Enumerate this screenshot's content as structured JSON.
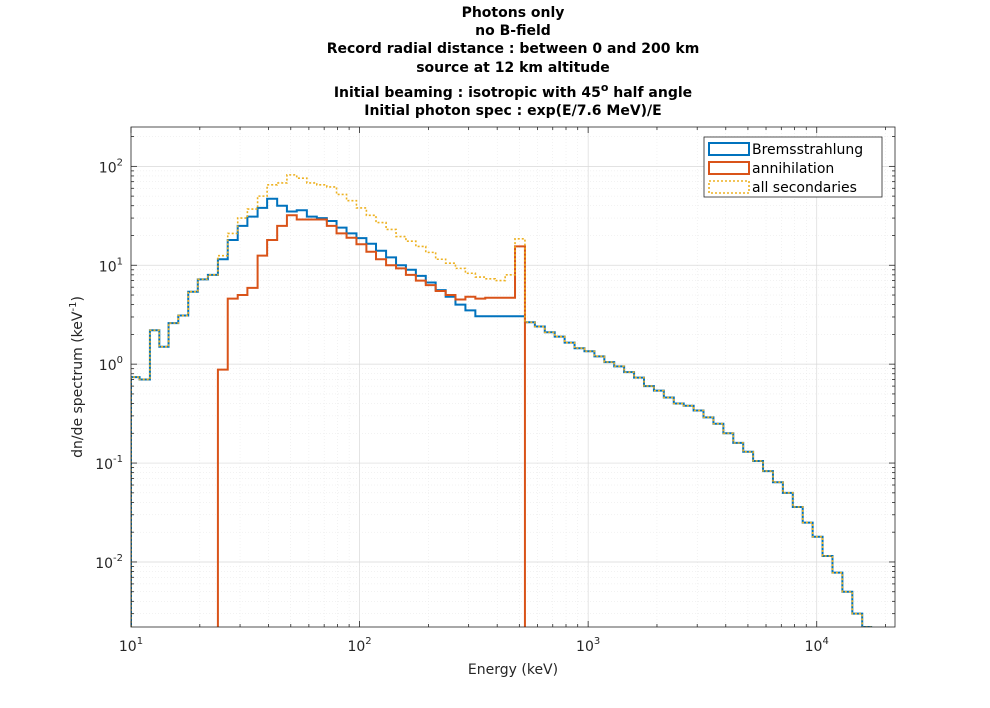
{
  "chart_data": {
    "type": "line",
    "title_lines": [
      "Photons only",
      "no B-field",
      "Record radial distance : between 0 and 200 km",
      "source at 12 km altitude"
    ],
    "title_beaming_prefix": "Initial beaming : isotropic with 45",
    "title_beaming_sup": "o",
    "title_beaming_suffix": " half angle",
    "title_spec": "Initial photon spec : exp(E/7.6 MeV)/E",
    "xlabel": "Energy (keV)",
    "ylabel_main": "dn/de spectrum (keV",
    "ylabel_sup": "-1",
    "ylabel_close": ")",
    "xscale": "log",
    "yscale": "log",
    "xlim": [
      10,
      22000
    ],
    "ylim": [
      0.0022,
      250
    ],
    "grid": true,
    "legend_position": "top-right",
    "x_ticks": [
      {
        "value": 10,
        "base": "10",
        "exp": "1"
      },
      {
        "value": 100,
        "base": "10",
        "exp": "2"
      },
      {
        "value": 1000,
        "base": "10",
        "exp": "3"
      },
      {
        "value": 10000,
        "base": "10",
        "exp": "4"
      }
    ],
    "y_ticks": [
      {
        "value": 0.01,
        "base": "10",
        "exp": "-2"
      },
      {
        "value": 0.1,
        "base": "10",
        "exp": "-1"
      },
      {
        "value": 1,
        "base": "10",
        "exp": "0"
      },
      {
        "value": 10,
        "base": "10",
        "exp": "1"
      },
      {
        "value": 100,
        "base": "10",
        "exp": "2"
      }
    ],
    "series": [
      {
        "name": "Bremsstrahlung",
        "color": "#0072BD",
        "dash": "solid",
        "bin_edges": [
          10,
          10.9,
          12.1,
          13.3,
          14.6,
          16.1,
          17.8,
          19.6,
          21.7,
          24.0,
          26.5,
          29.3,
          32.3,
          35.8,
          39.4,
          43.6,
          48.1,
          53.1,
          58.8,
          65.0,
          71.9,
          79.3,
          87.7,
          96.9,
          107.1,
          118.0,
          130.6,
          144.4,
          159.5,
          176.3,
          194.8,
          215.2,
          238.0,
          262.7,
          290.4,
          321.0,
          354.7,
          392.0,
          433.4,
          478.7,
          529.0,
          584.6,
          646.1,
          713.9,
          788.9,
          872.0,
          963.5,
          1065,
          1177,
          1300,
          1437,
          1588,
          1755,
          1940,
          2143,
          2369,
          2618,
          2893,
          3196,
          3532,
          3904,
          4314,
          4768,
          5269,
          5822,
          6434,
          7110,
          7857,
          8683,
          9595,
          10603,
          11718,
          12949,
          14310,
          15813,
          17476
        ],
        "values": [
          0.74,
          0.7,
          2.2,
          1.5,
          2.6,
          3.1,
          5.4,
          7.2,
          8.0,
          11.5,
          18.0,
          25.0,
          31.0,
          38.0,
          47.0,
          40.0,
          35.0,
          36.0,
          31.0,
          30.0,
          28.0,
          24.0,
          21.0,
          18.8,
          16.5,
          14.0,
          12.0,
          10.0,
          9.0,
          7.8,
          6.7,
          5.6,
          4.8,
          4.0,
          3.5,
          3.05,
          3.05,
          3.05,
          3.05,
          3.05,
          2.65,
          2.4,
          2.1,
          1.9,
          1.65,
          1.45,
          1.35,
          1.2,
          1.05,
          0.95,
          0.83,
          0.73,
          0.6,
          0.54,
          0.46,
          0.4,
          0.38,
          0.34,
          0.29,
          0.25,
          0.2,
          0.16,
          0.13,
          0.105,
          0.083,
          0.064,
          0.05,
          0.036,
          0.025,
          0.018,
          0.0115,
          0.0078,
          0.005,
          0.003,
          0.0021
        ]
      },
      {
        "name": "annihilation",
        "color": "#D95319",
        "dash": "solid",
        "bin_edges": [
          24.0,
          26.5,
          29.3,
          32.3,
          35.8,
          39.4,
          43.6,
          48.1,
          53.1,
          58.8,
          65.0,
          71.9,
          79.3,
          87.7,
          96.9,
          107.1,
          118.0,
          130.6,
          144.4,
          159.5,
          176.3,
          194.8,
          215.2,
          238.0,
          262.7,
          290.4,
          321.0,
          354.7,
          392.0,
          433.4,
          478.7,
          529.0
        ],
        "values": [
          0.88,
          4.6,
          5.0,
          5.9,
          12.5,
          18.0,
          25.0,
          32.0,
          29.0,
          29.0,
          29.0,
          25.0,
          21.0,
          19.0,
          16.3,
          13.7,
          11.5,
          10.0,
          9.3,
          8.0,
          7.0,
          6.3,
          5.5,
          5.0,
          4.5,
          4.8,
          4.6,
          4.7,
          4.7,
          4.7,
          15.5
        ]
      },
      {
        "name": "all secondaries",
        "color": "#EDB120",
        "dash": "dotted",
        "bin_edges": [
          10,
          10.9,
          12.1,
          13.3,
          14.6,
          16.1,
          17.8,
          19.6,
          21.7,
          24.0,
          26.5,
          29.3,
          32.3,
          35.8,
          39.4,
          43.6,
          48.1,
          53.1,
          58.8,
          65.0,
          71.9,
          79.3,
          87.7,
          96.9,
          107.1,
          118.0,
          130.6,
          144.4,
          159.5,
          176.3,
          194.8,
          215.2,
          238.0,
          262.7,
          290.4,
          321.0,
          354.7,
          392.0,
          433.4,
          478.7,
          529.0,
          584.6,
          646.1,
          713.9,
          788.9,
          872.0,
          963.5,
          1065,
          1177,
          1300,
          1437,
          1588,
          1755,
          1940,
          2143,
          2369,
          2618,
          2893,
          3196,
          3532,
          3904,
          4314,
          4768,
          5269,
          5822,
          6434,
          7110,
          7857,
          8683,
          9595,
          10603,
          11718,
          12949,
          14310,
          15813,
          17476
        ],
        "values": [
          0.74,
          0.7,
          2.2,
          1.5,
          2.6,
          3.1,
          5.4,
          7.2,
          8.0,
          12.5,
          21.0,
          30.0,
          37.0,
          50.0,
          65.0,
          68.0,
          82.0,
          76.0,
          68.0,
          65.0,
          62.0,
          52.0,
          45.0,
          38.0,
          32.0,
          27.0,
          23.0,
          19.5,
          17.5,
          15.5,
          13.5,
          11.5,
          10.5,
          9.3,
          8.3,
          7.6,
          7.3,
          7.0,
          8.0,
          18.5,
          2.65,
          2.4,
          2.1,
          1.9,
          1.65,
          1.45,
          1.35,
          1.2,
          1.05,
          0.95,
          0.83,
          0.73,
          0.6,
          0.54,
          0.46,
          0.4,
          0.38,
          0.34,
          0.29,
          0.25,
          0.2,
          0.16,
          0.13,
          0.105,
          0.083,
          0.064,
          0.05,
          0.036,
          0.025,
          0.018,
          0.0115,
          0.0078,
          0.005,
          0.003,
          0.0021
        ]
      }
    ]
  }
}
